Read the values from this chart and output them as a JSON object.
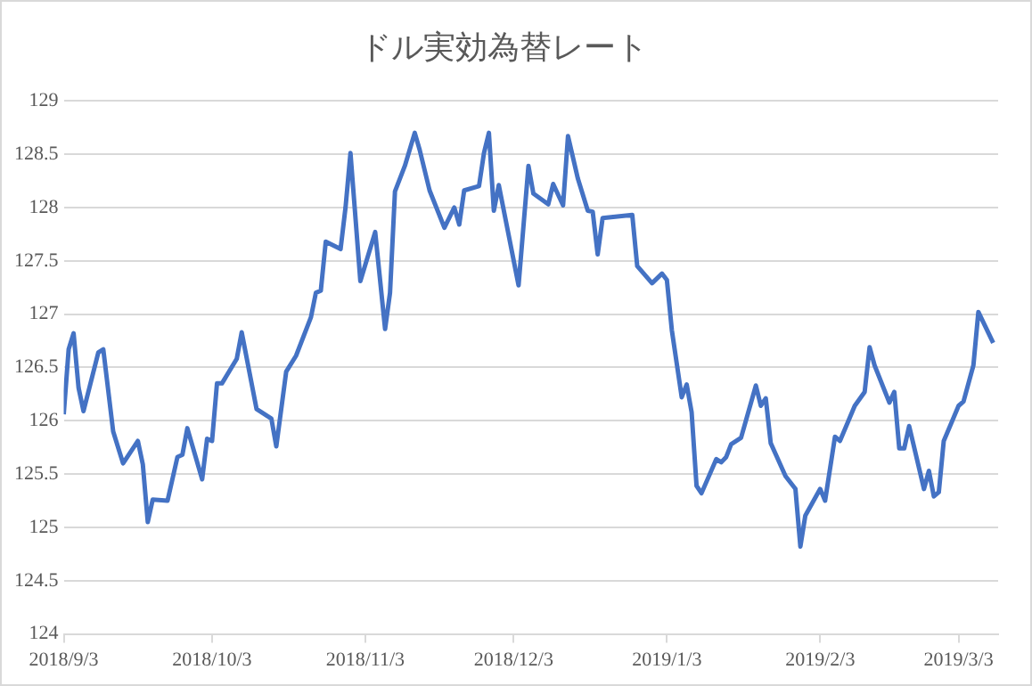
{
  "chart_data": {
    "type": "line",
    "title": "ドル実効為替レート",
    "color": "#4472c4",
    "grid": "y",
    "legend": false,
    "marker": "none",
    "line_style": "solid",
    "xlim": [
      "2018-09-03",
      "2019-03-11"
    ],
    "xticks": [
      {
        "value": "2018-09-03",
        "label": "2018/9/3"
      },
      {
        "value": "2018-10-03",
        "label": "2018/10/3"
      },
      {
        "value": "2018-11-03",
        "label": "2018/11/3"
      },
      {
        "value": "2018-12-03",
        "label": "2018/12/3"
      },
      {
        "value": "2019-01-03",
        "label": "2019/1/3"
      },
      {
        "value": "2019-02-03",
        "label": "2019/2/3"
      },
      {
        "value": "2019-03-03",
        "label": "2019/3/3"
      }
    ],
    "ylim": [
      124,
      129
    ],
    "yticks": [
      124,
      124.5,
      125,
      125.5,
      126,
      126.5,
      127,
      127.5,
      128,
      128.5,
      129
    ],
    "x": [
      "2018-09-03",
      "2018-09-04",
      "2018-09-05",
      "2018-09-06",
      "2018-09-07",
      "2018-09-10",
      "2018-09-11",
      "2018-09-13",
      "2018-09-15",
      "2018-09-18",
      "2018-09-19",
      "2018-09-20",
      "2018-09-21",
      "2018-09-24",
      "2018-09-26",
      "2018-09-27",
      "2018-09-28",
      "2018-10-01",
      "2018-10-02",
      "2018-10-03",
      "2018-10-04",
      "2018-10-05",
      "2018-10-08",
      "2018-10-09",
      "2018-10-12",
      "2018-10-15",
      "2018-10-16",
      "2018-10-18",
      "2018-10-20",
      "2018-10-23",
      "2018-10-24",
      "2018-10-25",
      "2018-10-26",
      "2018-10-29",
      "2018-10-30",
      "2018-10-31",
      "2018-11-02",
      "2018-11-05",
      "2018-11-07",
      "2018-11-08",
      "2018-11-09",
      "2018-11-11",
      "2018-11-13",
      "2018-11-14",
      "2018-11-16",
      "2018-11-19",
      "2018-11-21",
      "2018-11-22",
      "2018-11-23",
      "2018-11-26",
      "2018-11-27",
      "2018-11-28",
      "2018-11-29",
      "2018-11-30",
      "2018-12-04",
      "2018-12-06",
      "2018-12-07",
      "2018-12-10",
      "2018-12-11",
      "2018-12-13",
      "2018-12-14",
      "2018-12-16",
      "2018-12-18",
      "2018-12-19",
      "2018-12-20",
      "2018-12-21",
      "2018-12-27",
      "2018-12-28",
      "2018-12-31",
      "2019-01-02",
      "2019-01-03",
      "2019-01-04",
      "2019-01-06",
      "2019-01-07",
      "2019-01-08",
      "2019-01-09",
      "2019-01-10",
      "2019-01-13",
      "2019-01-14",
      "2019-01-15",
      "2019-01-16",
      "2019-01-18",
      "2019-01-21",
      "2019-01-22",
      "2019-01-23",
      "2019-01-24",
      "2019-01-27",
      "2019-01-29",
      "2019-01-30",
      "2019-01-31",
      "2019-02-03",
      "2019-02-04",
      "2019-02-06",
      "2019-02-07",
      "2019-02-10",
      "2019-02-12",
      "2019-02-13",
      "2019-02-14",
      "2019-02-17",
      "2019-02-18",
      "2019-02-19",
      "2019-02-20",
      "2019-02-21",
      "2019-02-24",
      "2019-02-25",
      "2019-02-26",
      "2019-02-27",
      "2019-02-28",
      "2019-03-03",
      "2019-03-04",
      "2019-03-06",
      "2019-03-07",
      "2019-03-10"
    ],
    "values": [
      126.06,
      126.67,
      126.82,
      126.31,
      126.09,
      126.64,
      126.67,
      125.9,
      125.6,
      125.81,
      125.59,
      125.05,
      125.26,
      125.25,
      125.66,
      125.68,
      125.93,
      125.45,
      125.83,
      125.81,
      126.35,
      126.35,
      126.58,
      126.83,
      126.11,
      126.02,
      125.76,
      126.46,
      126.61,
      126.97,
      127.2,
      127.22,
      127.68,
      127.61,
      128.0,
      128.51,
      127.31,
      127.77,
      126.86,
      127.2,
      128.15,
      128.39,
      128.7,
      128.54,
      128.16,
      127.81,
      128.0,
      127.84,
      128.16,
      128.2,
      128.51,
      128.7,
      127.97,
      128.21,
      127.27,
      128.39,
      128.13,
      128.03,
      128.22,
      128.02,
      128.67,
      128.27,
      127.97,
      127.96,
      127.56,
      127.9,
      127.93,
      127.45,
      127.29,
      127.38,
      127.32,
      126.85,
      126.22,
      126.34,
      126.08,
      125.39,
      125.32,
      125.64,
      125.61,
      125.66,
      125.78,
      125.84,
      126.33,
      126.14,
      126.21,
      125.79,
      125.48,
      125.36,
      124.82,
      125.11,
      125.36,
      125.25,
      125.85,
      125.81,
      126.14,
      126.27,
      126.69,
      126.52,
      126.17,
      126.27,
      125.74,
      125.74,
      125.95,
      125.36,
      125.53,
      125.29,
      125.33,
      125.81,
      126.14,
      126.18,
      126.52,
      127.02,
      126.73
    ]
  }
}
